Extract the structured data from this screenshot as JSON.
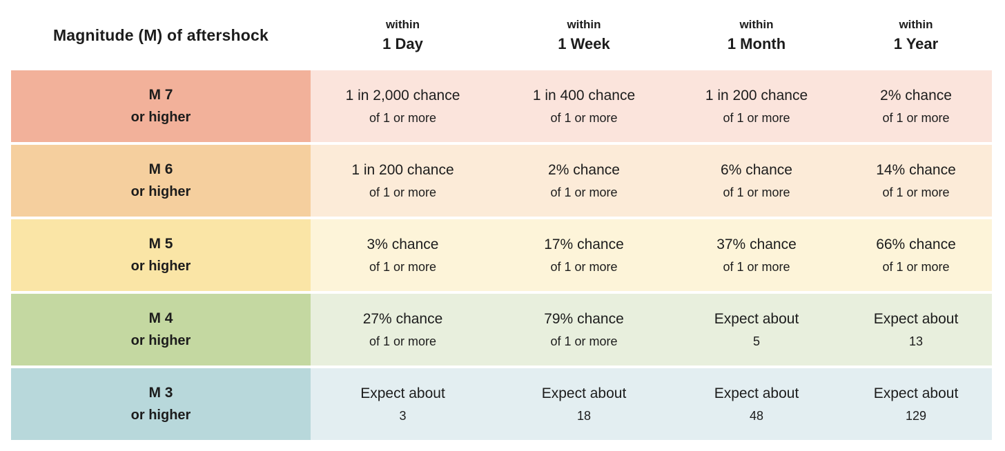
{
  "chart_data": {
    "type": "table",
    "text_color": "#1c1c1c",
    "page_bg": "#ffffff",
    "corner_header": "Magnitude (M) of aftershock",
    "column_headers": [
      {
        "line1": "within",
        "line2": "1 Day"
      },
      {
        "line1": "within",
        "line2": "1 Week"
      },
      {
        "line1": "within",
        "line2": "1 Month"
      },
      {
        "line1": "within",
        "line2": "1 Year"
      }
    ],
    "rows": [
      {
        "row_header": {
          "line1": "M 7",
          "line2": "or higher"
        },
        "colors": {
          "header_bg": "#f2b19a",
          "cells_bg": "#fbe4dc"
        },
        "cells": [
          {
            "line1": "1 in 2,000 chance",
            "line2": "of 1 or more"
          },
          {
            "line1": "1 in 400 chance",
            "line2": "of 1 or more"
          },
          {
            "line1": "1 in 200 chance",
            "line2": "of 1 or more"
          },
          {
            "line1": "2% chance",
            "line2": "of 1 or more"
          }
        ]
      },
      {
        "row_header": {
          "line1": "M 6",
          "line2": "or higher"
        },
        "colors": {
          "header_bg": "#f5cf9e",
          "cells_bg": "#fcebd8"
        },
        "cells": [
          {
            "line1": "1 in 200 chance",
            "line2": "of 1 or more"
          },
          {
            "line1": "2% chance",
            "line2": "of 1 or more"
          },
          {
            "line1": "6% chance",
            "line2": "of 1 or more"
          },
          {
            "line1": "14% chance",
            "line2": "of 1 or more"
          }
        ]
      },
      {
        "row_header": {
          "line1": "M 5",
          "line2": "or higher"
        },
        "colors": {
          "header_bg": "#fae5a6",
          "cells_bg": "#fdf4d9"
        },
        "cells": [
          {
            "line1": "3% chance",
            "line2": "of 1 or more"
          },
          {
            "line1": "17% chance",
            "line2": "of 1 or more"
          },
          {
            "line1": "37% chance",
            "line2": "of 1 or more"
          },
          {
            "line1": "66% chance",
            "line2": "of 1 or more"
          }
        ]
      },
      {
        "row_header": {
          "line1": "M 4",
          "line2": "or higher"
        },
        "colors": {
          "header_bg": "#c4d8a1",
          "cells_bg": "#e8efdd"
        },
        "cells": [
          {
            "line1": "27% chance",
            "line2": "of 1 or more"
          },
          {
            "line1": "79% chance",
            "line2": "of 1 or more"
          },
          {
            "line1": "Expect about",
            "line2": "5"
          },
          {
            "line1": "Expect about",
            "line2": "13"
          }
        ]
      },
      {
        "row_header": {
          "line1": "M 3",
          "line2": "or higher"
        },
        "colors": {
          "header_bg": "#b8d8db",
          "cells_bg": "#e3eef1"
        },
        "cells": [
          {
            "line1": "Expect about",
            "line2": "3"
          },
          {
            "line1": "Expect about",
            "line2": "18"
          },
          {
            "line1": "Expect about",
            "line2": "48"
          },
          {
            "line1": "Expect about",
            "line2": "129"
          }
        ]
      }
    ]
  }
}
